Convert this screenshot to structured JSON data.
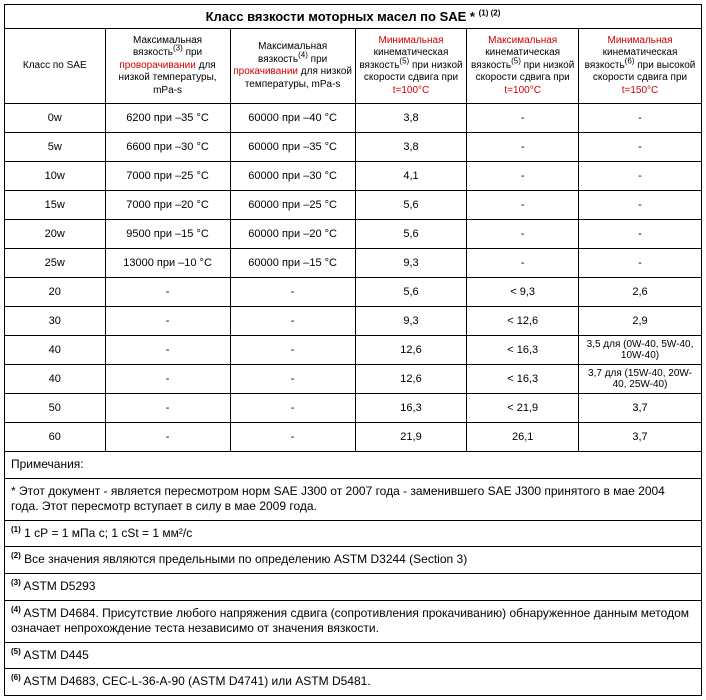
{
  "title_prefix": "Класс вязкости моторных масел по SAE *",
  "title_sup": "(1) (2)",
  "headers": {
    "c0": "Класс по SAE",
    "c1": {
      "p1": "Максимальная вязкость",
      "sup": "(3)",
      "p2": " при ",
      "hl": "проворачивании",
      "p3": " для низкой температуры, mPa-s"
    },
    "c2": {
      "p1": "Максимальная вязкость",
      "sup": "(4)",
      "p2": " при ",
      "hl": "прокачивании",
      "p3": "  для низкой температуры, mPa-s"
    },
    "c3": {
      "hl": "Минимальная",
      "p1": " кинематическая вязкость",
      "sup": "(5)",
      "p2": " при низкой скорости сдвига при ",
      "t": "t=100°C"
    },
    "c4": {
      "hl": "Максимальная",
      "p1": " кинематическая вязкость",
      "sup": "(5)",
      "p2": " при низкой скорости сдвига при ",
      "t": "t=100°C"
    },
    "c5": {
      "hl": "Минимальная",
      "p1": " кинематическая вязкость",
      "sup": "(6)",
      "p2": " при высокой скорости сдвига при ",
      "t": "t=150°C"
    }
  },
  "rows": [
    {
      "c0": "0w",
      "c1": "6200 при –35 °С",
      "c2": "60000 при –40 °С",
      "c3": "3,8",
      "c4": "-",
      "c5": "-"
    },
    {
      "c0": "5w",
      "c1": "6600 при –30 °С",
      "c2": "60000 при –35 °С",
      "c3": "3,8",
      "c4": "-",
      "c5": "-"
    },
    {
      "c0": "10w",
      "c1": "7000 при –25 °С",
      "c2": "60000 при –30 °С",
      "c3": "4,1",
      "c4": "-",
      "c5": "-"
    },
    {
      "c0": "15w",
      "c1": "7000 при –20 °С",
      "c2": "60000 при –25 °С",
      "c3": "5,6",
      "c4": "-",
      "c5": "-"
    },
    {
      "c0": "20w",
      "c1": "9500 при –15 °С",
      "c2": "60000 при –20 °С",
      "c3": "5,6",
      "c4": "-",
      "c5": "-"
    },
    {
      "c0": "25w",
      "c1": "13000 при –10 °С",
      "c2": "60000 при –15 °С",
      "c3": "9,3",
      "c4": "-",
      "c5": "-"
    },
    {
      "c0": "20",
      "c1": "-",
      "c2": "-",
      "c3": "5,6",
      "c4": "< 9,3",
      "c5": "2,6"
    },
    {
      "c0": "30",
      "c1": "-",
      "c2": "-",
      "c3": "9,3",
      "c4": "< 12,6",
      "c5": "2,9"
    },
    {
      "c0": "40",
      "c1": "-",
      "c2": "-",
      "c3": "12,6",
      "c4": "< 16,3",
      "c5": "3,5 для (0W-40, 5W-40, 10W-40)"
    },
    {
      "c0": "40",
      "c1": "-",
      "c2": "-",
      "c3": "12,6",
      "c4": "< 16,3",
      "c5": "3,7 для (15W-40, 20W-40, 25W-40)"
    },
    {
      "c0": "50",
      "c1": "-",
      "c2": "-",
      "c3": "16,3",
      "c4": "< 21,9",
      "c5": "3,7"
    },
    {
      "c0": "60",
      "c1": "-",
      "c2": "-",
      "c3": "21,9",
      "c4": "26,1",
      "c5": "3,7"
    }
  ],
  "notes": [
    {
      "sup": "",
      "text": "Примечания:"
    },
    {
      "sup": "",
      "text": " *  Этот документ - является пересмотром норм SAE J300 от  2007 года - заменившего SAE J300 принятого в  мае  2004 года. Этот пересмотр вступает в силу в мае 2009 года."
    },
    {
      "sup": "(1)",
      "text": " 1 сР = 1 мПа с; 1 cSt = 1 мм²/с"
    },
    {
      "sup": "(2)",
      "text": " Все значения являются предельными по определению ASTM D3244 (Section 3)"
    },
    {
      "sup": "(3)",
      "text": " ASTM D5293"
    },
    {
      "sup": "(4)",
      "text": " ASTM D4684. Присутствие любого напряжения сдвига (сопротивления прокачиванию)  обнаруженное данным методом означает непрохождение теста независимо от значения вязкости."
    },
    {
      "sup": "(5)",
      "text": " ASTM D445"
    },
    {
      "sup": "(6)",
      "text": " ASTM D4683, CEC-L-36-A-90 (ASTM D4741) или ASTM D5481."
    }
  ]
}
